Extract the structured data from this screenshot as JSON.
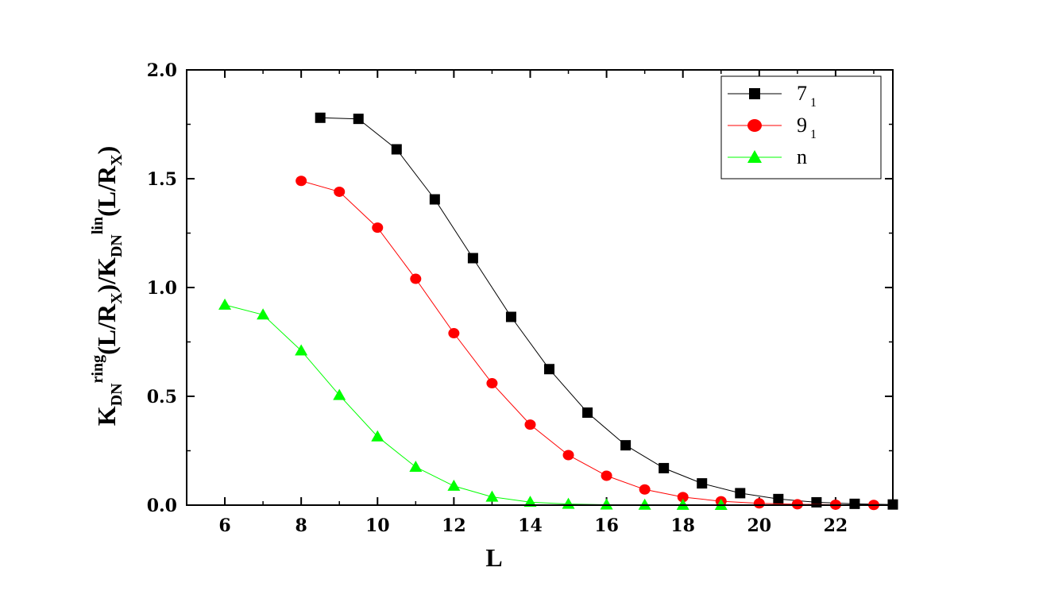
{
  "chart_data": {
    "type": "line",
    "xlabel": "L",
    "ylabel": {
      "base1": "K",
      "sub1": "DN",
      "sup1": "ring",
      "mid1": "(L/R",
      "sub2": "X",
      "mid2": ")/K",
      "sub3": "DN",
      "sup3": "lin",
      "mid3": "(L/R",
      "sub4": "X",
      "end": ")"
    },
    "xlim": [
      5,
      23.5
    ],
    "ylim": [
      0,
      2.0
    ],
    "xticks": [
      6,
      8,
      10,
      12,
      14,
      16,
      18,
      20,
      22
    ],
    "xtick_labels": [
      "6",
      "8",
      "10",
      "12",
      "14",
      "16",
      "18",
      "20",
      "22"
    ],
    "yticks": [
      0,
      0.5,
      1.0,
      1.5,
      2.0
    ],
    "ytick_labels": [
      "0.0",
      "0.5",
      "1.0",
      "1.5",
      "2.0"
    ],
    "legend_position": "top-right",
    "series": [
      {
        "name_base": "7",
        "name_sub": "1",
        "color": "#000000",
        "marker": "square",
        "x": [
          8.5,
          9.5,
          10.5,
          11.5,
          12.5,
          13.5,
          14.5,
          15.5,
          16.5,
          17.5,
          18.5,
          19.5,
          20.5,
          21.5,
          22.5,
          23.5
        ],
        "y": [
          1.78,
          1.775,
          1.635,
          1.405,
          1.135,
          0.865,
          0.625,
          0.425,
          0.275,
          0.17,
          0.1,
          0.055,
          0.028,
          0.013,
          0.006,
          0.003
        ]
      },
      {
        "name_base": "9",
        "name_sub": "1",
        "color": "#ff0000",
        "marker": "circle",
        "x": [
          8,
          9,
          10,
          11,
          12,
          13,
          14,
          15,
          16,
          17,
          18,
          19,
          20,
          21,
          22,
          23
        ],
        "y": [
          1.49,
          1.44,
          1.275,
          1.04,
          0.79,
          0.56,
          0.37,
          0.23,
          0.135,
          0.072,
          0.037,
          0.018,
          0.008,
          0.004,
          0.002,
          0.001
        ]
      },
      {
        "name_base": "n",
        "name_sub": "",
        "color": "#00ff00",
        "marker": "triangle",
        "x": [
          6,
          7,
          8,
          9,
          10,
          11,
          12,
          13,
          14,
          15,
          16,
          17,
          18,
          19
        ],
        "y": [
          0.92,
          0.875,
          0.71,
          0.505,
          0.315,
          0.175,
          0.088,
          0.038,
          0.014,
          0.005,
          0.002,
          0.001,
          0.0005,
          0.0002
        ]
      }
    ]
  }
}
